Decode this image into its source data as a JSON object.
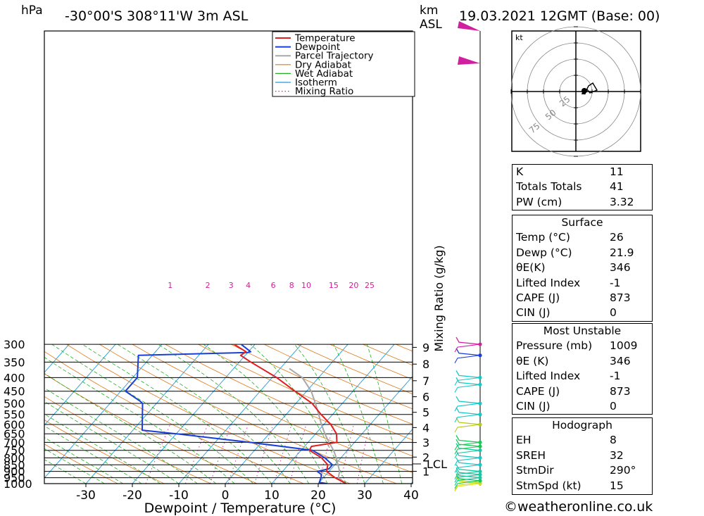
{
  "header": {
    "hpa_label": "hPa",
    "location": "-30°00'S  308°11'W  3m  ASL",
    "km_label": "km",
    "asl_label": "ASL",
    "datetime": "19.03.2021  12GMT  (Base: 00)"
  },
  "chart_data": {
    "type": "skew-t",
    "xlabel": "Dewpoint / Temperature (°C)",
    "ylabel_left": "hPa",
    "ylabel_right": "Mixing Ratio (g/kg)",
    "pressure_levels": [
      300,
      350,
      400,
      450,
      500,
      550,
      600,
      650,
      700,
      750,
      800,
      850,
      900,
      950,
      1000
    ],
    "x_ticks": [
      -30,
      -20,
      -10,
      0,
      10,
      20,
      30,
      40
    ],
    "km_ticks": [
      1,
      2,
      3,
      4,
      5,
      6,
      7,
      8,
      9
    ],
    "lcl_label": "LCL",
    "mixing_ratio_labels": [
      "1",
      "2",
      "3",
      "4",
      "6",
      "8",
      "10",
      "15",
      "20",
      "25"
    ],
    "legend": [
      "Temperature",
      "Dewpoint",
      "Parcel Trajectory",
      "Dry Adiabat",
      "Wet Adiabat",
      "Isotherm",
      "Mixing Ratio"
    ],
    "colors": {
      "temperature": "#e02020",
      "dewpoint": "#1a3fd6",
      "parcel": "#a8a8a8",
      "dry_adiabat": "#e07818",
      "wet_adiabat": "#22b022",
      "isotherm": "#1e9ee0",
      "mixing_ratio": "#d0209a"
    },
    "temperature": [
      [
        1000,
        26
      ],
      [
        950,
        22.5
      ],
      [
        900,
        19.5
      ],
      [
        850,
        18.5
      ],
      [
        800,
        15.8
      ],
      [
        750,
        11.8
      ],
      [
        725,
        11.5
      ],
      [
        700,
        16.2
      ],
      [
        650,
        14.5
      ],
      [
        600,
        11.5
      ],
      [
        550,
        7.5
      ],
      [
        500,
        3.5
      ],
      [
        450,
        -2.5
      ],
      [
        400,
        -9
      ],
      [
        350,
        -17.5
      ],
      [
        330,
        -21
      ],
      [
        320,
        -20.5
      ],
      [
        300,
        -24.5
      ]
    ],
    "dewpoint": [
      [
        1000,
        21.9
      ],
      [
        990,
        20
      ],
      [
        950,
        19.5
      ],
      [
        925,
        19
      ],
      [
        900,
        17.5
      ],
      [
        880,
        19.5
      ],
      [
        850,
        19.5
      ],
      [
        800,
        16.5
      ],
      [
        750,
        12.5
      ],
      [
        700,
        -2.5
      ],
      [
        650,
        -20
      ],
      [
        630,
        -28
      ],
      [
        500,
        -33
      ],
      [
        490,
        -34
      ],
      [
        450,
        -39
      ],
      [
        400,
        -39
      ],
      [
        330,
        -43
      ],
      [
        322,
        -20
      ],
      [
        320,
        -19.5
      ],
      [
        300,
        -23
      ]
    ],
    "parcel": [
      [
        1000,
        26
      ],
      [
        950,
        23.2
      ],
      [
        900,
        22.3
      ],
      [
        850,
        20.7
      ],
      [
        800,
        19
      ],
      [
        750,
        17
      ],
      [
        700,
        14.5
      ],
      [
        650,
        12
      ],
      [
        600,
        9.5
      ],
      [
        550,
        7
      ],
      [
        500,
        4.2
      ],
      [
        450,
        1
      ],
      [
        400,
        -3.5
      ],
      [
        370,
        -8
      ]
    ],
    "wind_barbs_levels": [
      1000,
      990,
      975,
      950,
      925,
      900,
      850,
      800,
      750,
      725,
      700,
      600,
      550,
      500,
      425,
      400,
      330,
      300
    ],
    "hodograph": {
      "unit": "kt",
      "ring_labels": [
        "25",
        "50",
        "75"
      ]
    }
  },
  "indices": [
    {
      "label": "K",
      "value": "11"
    },
    {
      "label": "Totals Totals",
      "value": "41"
    },
    {
      "label": "PW (cm)",
      "value": "3.32"
    }
  ],
  "surface": {
    "title": "Surface",
    "rows": [
      {
        "label": "Temp (°C)",
        "value": "26"
      },
      {
        "label": "Dewp (°C)",
        "value": "21.9"
      },
      {
        "label": "θE(K)",
        "value": "346"
      },
      {
        "label": "Lifted Index",
        "value": "-1"
      },
      {
        "label": "CAPE (J)",
        "value": "873"
      },
      {
        "label": "CIN (J)",
        "value": "0"
      }
    ]
  },
  "most_unstable": {
    "title": "Most Unstable",
    "rows": [
      {
        "label": "Pressure (mb)",
        "value": "1009"
      },
      {
        "label": "θE (K)",
        "value": "346"
      },
      {
        "label": "Lifted Index",
        "value": "-1"
      },
      {
        "label": "CAPE (J)",
        "value": "873"
      },
      {
        "label": "CIN (J)",
        "value": "0"
      }
    ]
  },
  "hodograph_table": {
    "title": "Hodograph",
    "rows": [
      {
        "label": "EH",
        "value": "8"
      },
      {
        "label": "SREH",
        "value": "32"
      },
      {
        "label": "StmDir",
        "value": "290°"
      },
      {
        "label": "StmSpd (kt)",
        "value": "15"
      }
    ]
  },
  "footer": "©weatheronline.co.uk"
}
